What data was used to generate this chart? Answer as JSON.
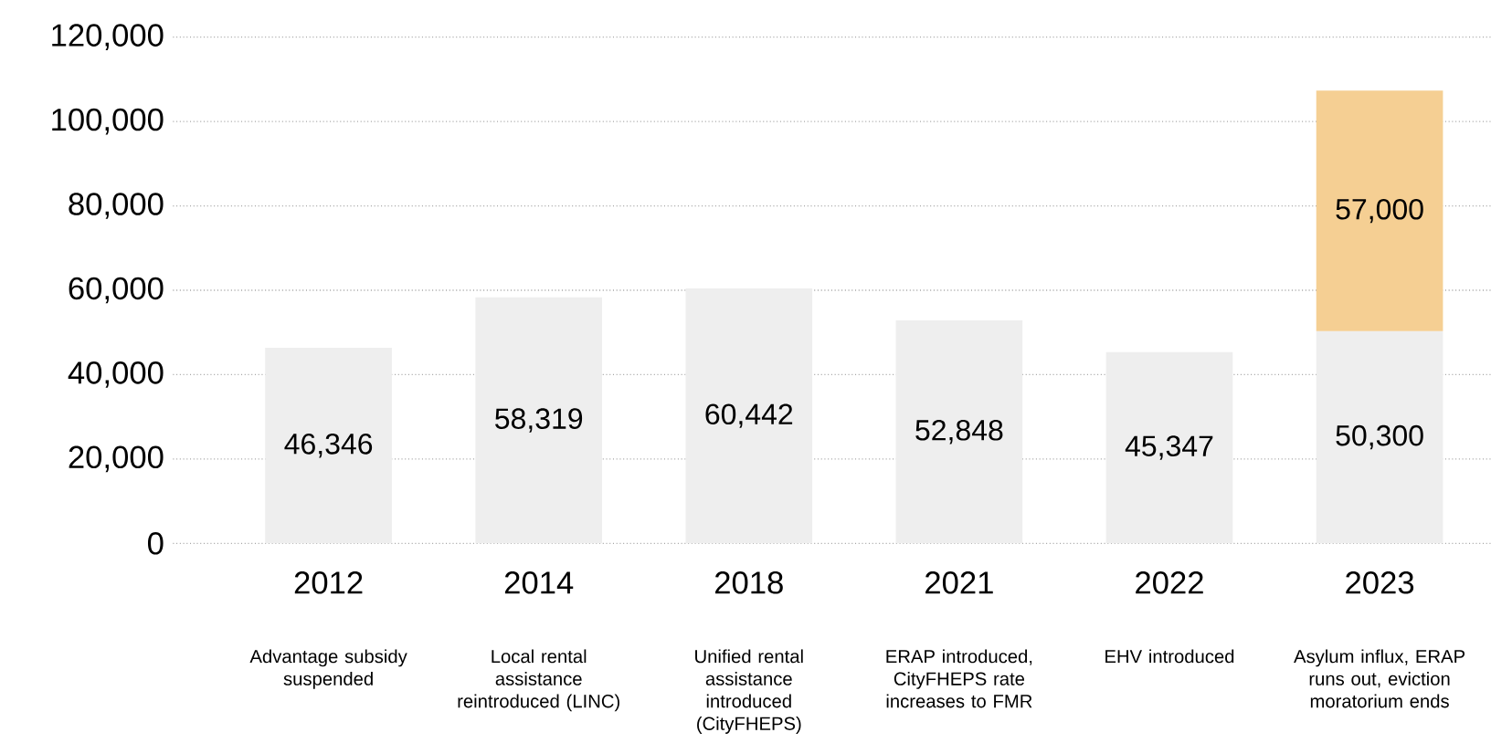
{
  "chart_data": {
    "type": "bar",
    "stacked": true,
    "categories": [
      "2012",
      "2014",
      "2018",
      "2021",
      "2022",
      "2023"
    ],
    "series": [
      {
        "color": "#eeeeee",
        "values": [
          46346,
          58319,
          60442,
          52848,
          45347,
          50300
        ],
        "value_labels": [
          "46,346",
          "58,319",
          "60,442",
          "52,848",
          "45,347",
          "50,300"
        ]
      },
      {
        "color": "#f5cf93",
        "values": [
          null,
          null,
          null,
          null,
          null,
          57000
        ],
        "value_labels": [
          null,
          null,
          null,
          null,
          null,
          "57,000"
        ]
      }
    ],
    "ylim": [
      0,
      120000
    ],
    "yticks": [
      {
        "value": 0,
        "label": "0"
      },
      {
        "value": 20000,
        "label": "20,000"
      },
      {
        "value": 40000,
        "label": "40,000"
      },
      {
        "value": 60000,
        "label": "60,000"
      },
      {
        "value": 80000,
        "label": "80,000"
      },
      {
        "value": 100000,
        "label": "100,000"
      },
      {
        "value": 120000,
        "label": "120,000"
      }
    ],
    "grid": "y",
    "annotations": [
      "Advantage subsidy suspended",
      "Local rental assistance reintroduced (LINC)",
      "Unified rental assistance introduced (CityFHEPS)",
      "ERAP introduced, CityFHEPS rate increases to FMR",
      "EHV introduced",
      "Asylum influx, ERAP runs out, eviction moratorium ends"
    ]
  }
}
